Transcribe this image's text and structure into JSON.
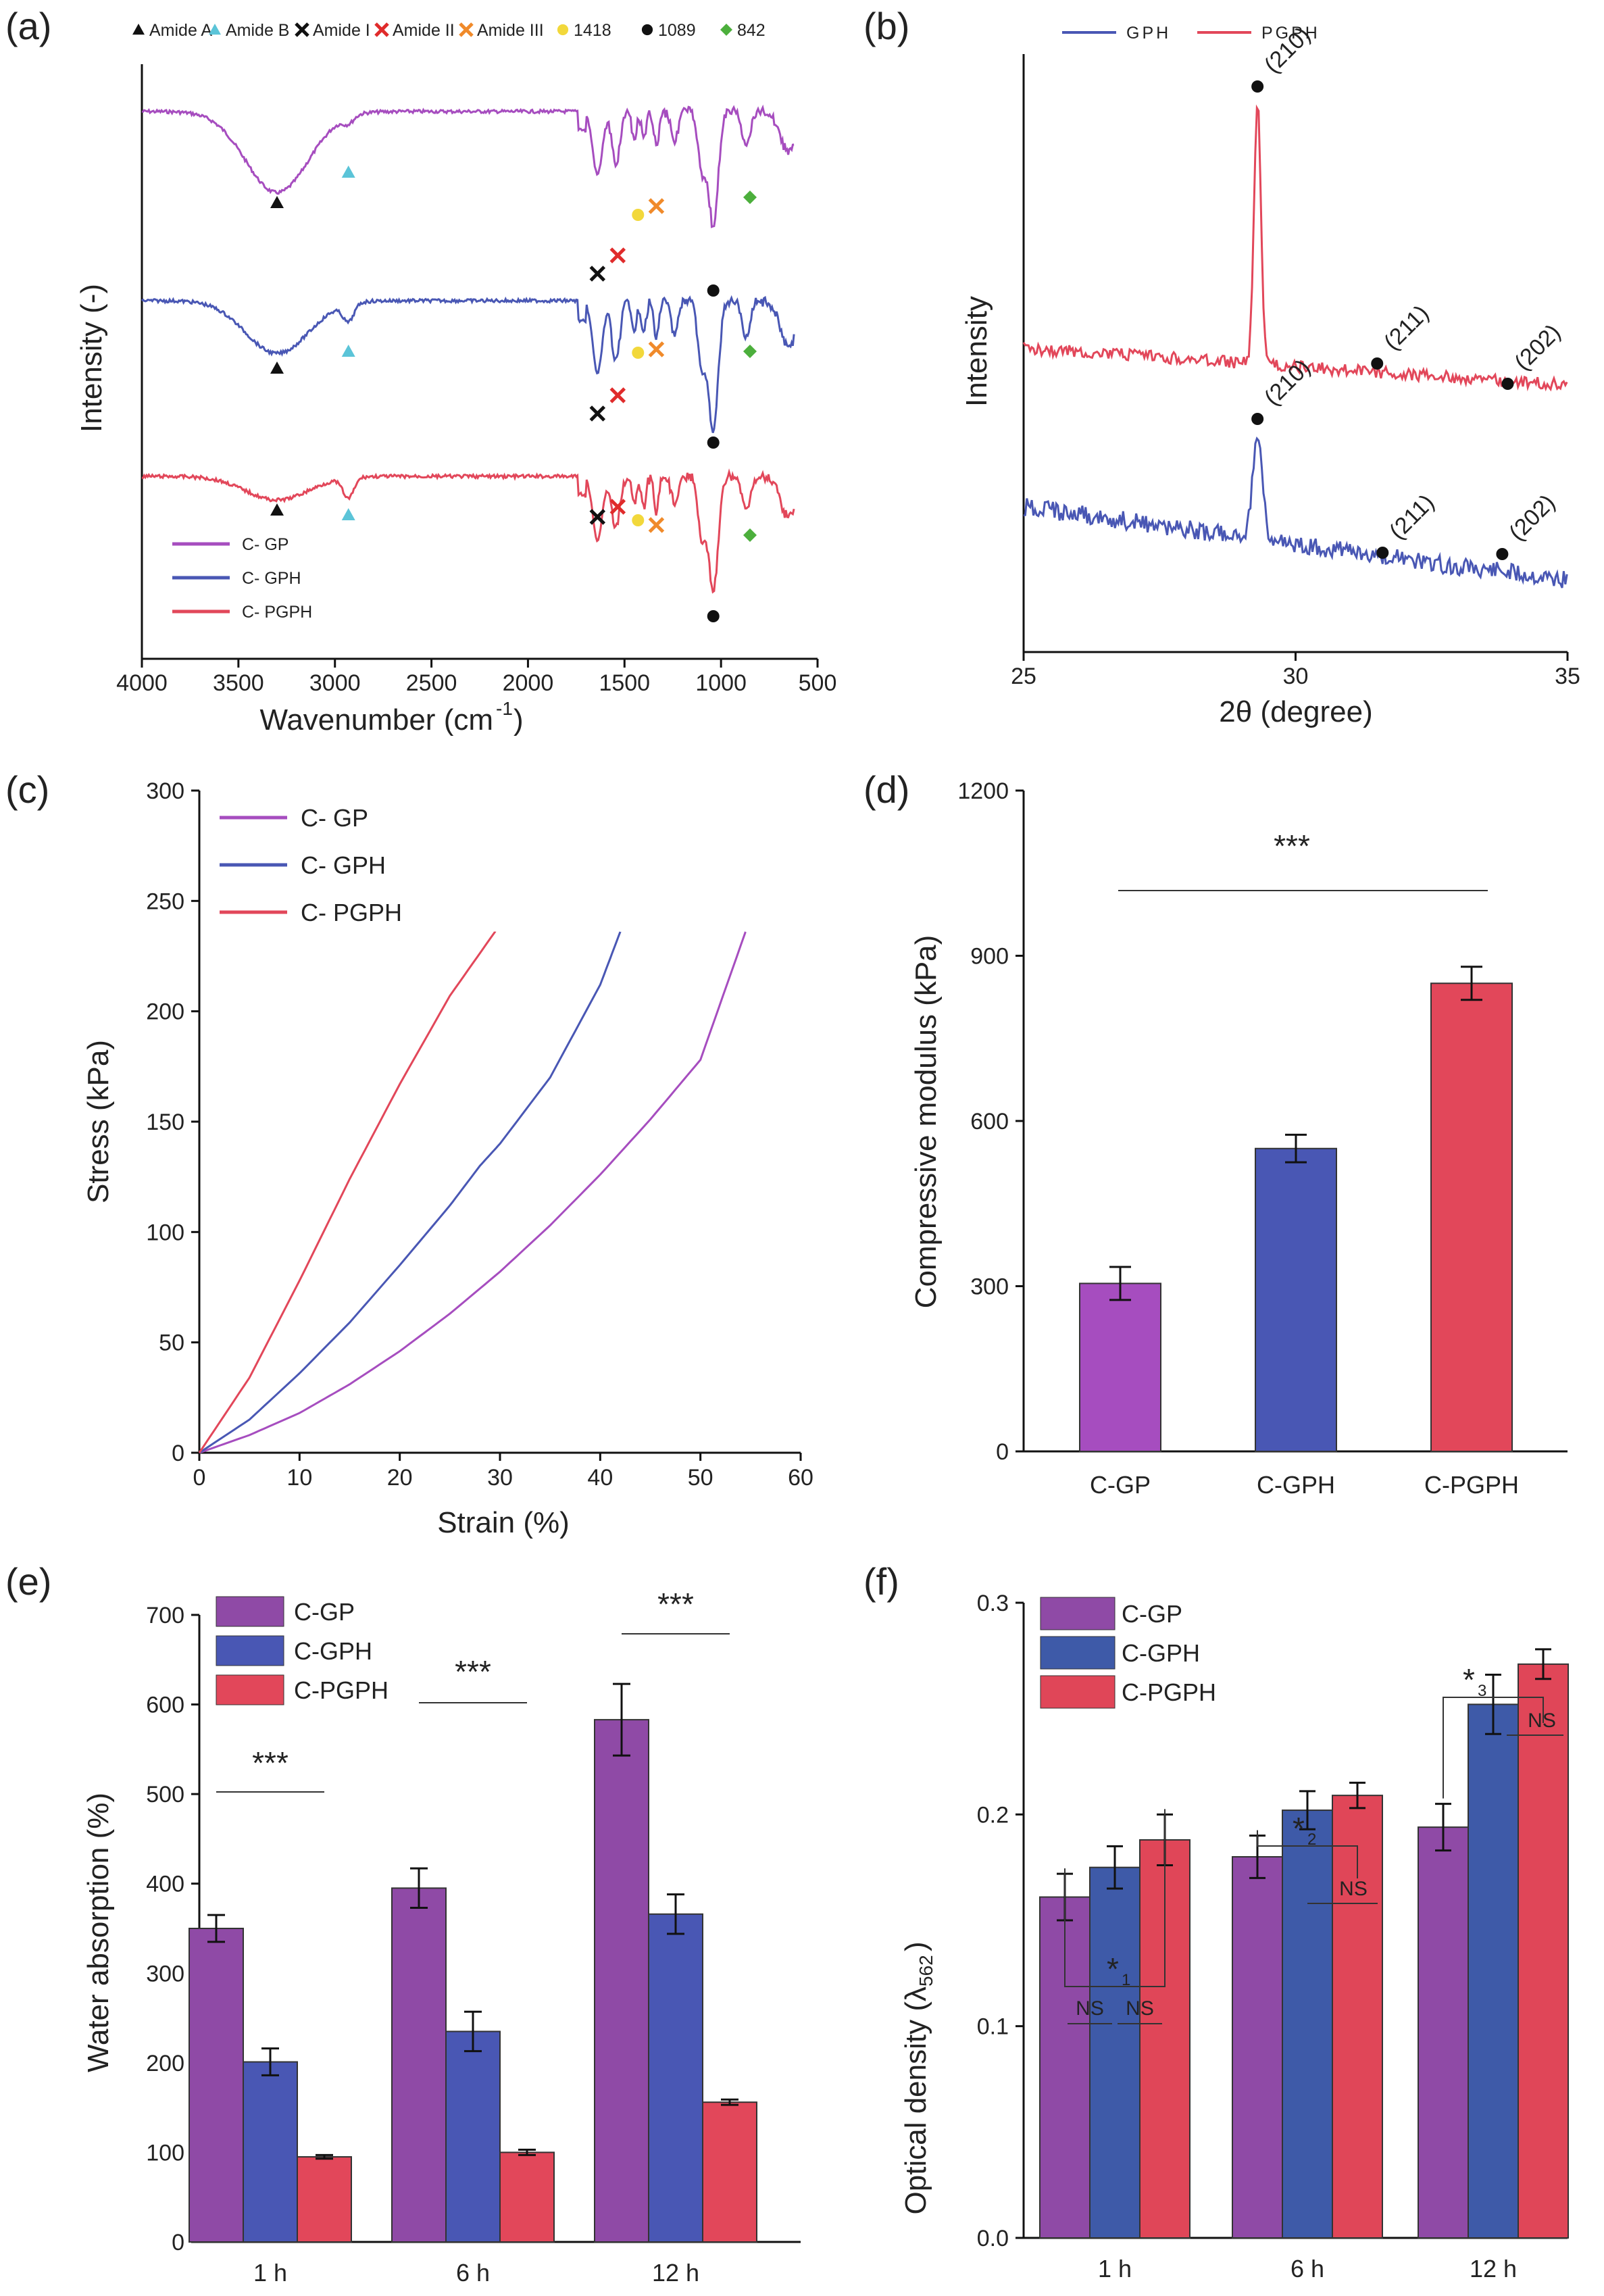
{
  "colors": {
    "gp": "#a64dbf",
    "gph": "#4957b4",
    "pgph": "#e2475a",
    "gp_dark": "#8f4aa6",
    "gph_dark": "#3e5aa8",
    "pgph_dark": "#e04658",
    "amideA": "#111111",
    "amideB": "#5bc4d8",
    "amideI": "#111111",
    "amideII": "#e02b2b",
    "amideIII": "#f08a2a",
    "p1418": "#f2d83b",
    "p1089": "#111111",
    "p842": "#4caf3c"
  },
  "chart_data": [
    {
      "panel": "(a)",
      "type": "line",
      "xlabel": "Wavenumber (cm⁻¹)",
      "ylabel": "Intensity (-)",
      "xlim": [
        4000,
        500
      ],
      "xticks": [
        4000,
        3500,
        3000,
        2500,
        2000,
        1500,
        1000,
        500
      ],
      "marker_legend": [
        {
          "label": "Amide A",
          "symbol": "▲",
          "color": "#111111"
        },
        {
          "label": "Amide B",
          "symbol": "▲",
          "color": "#5bc4d8"
        },
        {
          "label": "Amide I",
          "symbol": "✕",
          "color": "#111111"
        },
        {
          "label": "Amide II",
          "symbol": "✕",
          "color": "#e02b2b"
        },
        {
          "label": "Amide III",
          "symbol": "✕",
          "color": "#f08a2a"
        },
        {
          "label": "1418",
          "symbol": "●",
          "color": "#f2d83b"
        },
        {
          "label": "1089",
          "symbol": "●",
          "color": "#111111"
        },
        {
          "label": "842",
          "symbol": "◆",
          "color": "#4caf3c"
        }
      ],
      "series": [
        {
          "name": "C- GP",
          "color": "#a64dbf"
        },
        {
          "name": "C- GPH",
          "color": "#4957b4"
        },
        {
          "name": "C- PGPH",
          "color": "#e2475a"
        }
      ]
    },
    {
      "panel": "(b)",
      "type": "line",
      "xlabel": "2θ (degree)",
      "ylabel": "Intensity",
      "xlim": [
        25,
        35
      ],
      "xticks": [
        25,
        30,
        35
      ],
      "series": [
        {
          "name": "PGPH",
          "color": "#e2475a",
          "peaks": [
            {
              "x": 29.3,
              "label": "(210)"
            },
            {
              "x": 31.5,
              "label": "(211)"
            },
            {
              "x": 33.9,
              "label": "(202)"
            }
          ]
        },
        {
          "name": "GPH",
          "color": "#4957b4",
          "peaks": [
            {
              "x": 29.3,
              "label": "(210)"
            },
            {
              "x": 31.6,
              "label": "(211)"
            },
            {
              "x": 33.8,
              "label": "(202)"
            }
          ]
        }
      ],
      "legend": [
        "GPH",
        "PGPH"
      ]
    },
    {
      "panel": "(c)",
      "type": "line",
      "xlabel": "Strain (%)",
      "ylabel": "Stress (kPa)",
      "xlim": [
        0,
        60
      ],
      "ylim": [
        0,
        300
      ],
      "xticks": [
        0,
        10,
        20,
        30,
        40,
        50,
        60
      ],
      "yticks": [
        0,
        50,
        100,
        150,
        200,
        250,
        300
      ],
      "series": [
        {
          "name": "C- GP",
          "color": "#a64dbf",
          "x": [
            0,
            5,
            10,
            15,
            20,
            25,
            30,
            35,
            40,
            45,
            50,
            54.5
          ],
          "y": [
            0,
            8,
            18,
            31,
            46,
            63,
            82,
            103,
            126,
            151,
            178,
            236
          ]
        },
        {
          "name": "C- GPH",
          "color": "#4957b4",
          "x": [
            0,
            5,
            10,
            15,
            20,
            25,
            28,
            30,
            35,
            40,
            42
          ],
          "y": [
            0,
            15,
            36,
            59,
            85,
            112,
            130,
            140,
            170,
            212,
            236
          ]
        },
        {
          "name": "C- PGPH",
          "color": "#e2475a",
          "x": [
            0,
            5,
            10,
            15,
            20,
            25,
            29.5
          ],
          "y": [
            0,
            34,
            78,
            124,
            167,
            207,
            236
          ]
        }
      ]
    },
    {
      "panel": "(d)",
      "type": "bar",
      "ylabel": "Compressive modulus (kPa)",
      "ylim": [
        0,
        1200
      ],
      "yticks": [
        0,
        300,
        600,
        900,
        1200
      ],
      "categories": [
        "C-GP",
        "C-GPH",
        "C-PGPH"
      ],
      "values": [
        305,
        550,
        850
      ],
      "errors": [
        30,
        25,
        30
      ],
      "colors": [
        "#a64dbf",
        "#4957b4",
        "#e2475a"
      ],
      "significance": "***"
    },
    {
      "panel": "(e)",
      "type": "bar",
      "ylabel": "Water absorption (%)",
      "ylim": [
        0,
        700
      ],
      "yticks": [
        0,
        100,
        200,
        300,
        400,
        500,
        600,
        700
      ],
      "categories": [
        "1 h",
        "6 h",
        "12 h"
      ],
      "series": [
        {
          "name": "C-GP",
          "color": "#8f4aa6",
          "values": [
            350,
            395,
            583
          ],
          "errors": [
            15,
            22,
            40
          ]
        },
        {
          "name": "C-GPH",
          "color": "#4957b4",
          "values": [
            201,
            235,
            366
          ],
          "errors": [
            15,
            22,
            22
          ]
        },
        {
          "name": "C-PGPH",
          "color": "#e2475a",
          "values": [
            95,
            100,
            156
          ],
          "errors": [
            2,
            3,
            3
          ]
        }
      ],
      "significance": [
        "***",
        "***",
        "***"
      ]
    },
    {
      "panel": "(f)",
      "type": "bar",
      "ylabel": "Optical density (λ562)",
      "ylim": [
        0,
        0.3
      ],
      "yticks": [
        0.0,
        0.1,
        0.2,
        0.3
      ],
      "categories": [
        "1 h",
        "6 h",
        "12 h"
      ],
      "series": [
        {
          "name": "C-GP",
          "color": "#8f4aa6",
          "values": [
            0.161,
            0.18,
            0.194
          ],
          "errors": [
            0.011,
            0.01,
            0.011
          ]
        },
        {
          "name": "C-GPH",
          "color": "#3e5aa8",
          "values": [
            0.175,
            0.202,
            0.252
          ],
          "errors": [
            0.01,
            0.009,
            0.014
          ]
        },
        {
          "name": "C-PGPH",
          "color": "#e04658",
          "values": [
            0.188,
            0.209,
            0.271
          ],
          "errors": [
            0.012,
            0.006,
            0.007
          ]
        }
      ],
      "annotations": [
        {
          "group": "1 h",
          "star": "*1",
          "ns": [
            "NS",
            "NS"
          ]
        },
        {
          "group": "6 h",
          "star": "*2",
          "ns": [
            "NS"
          ]
        },
        {
          "group": "12 h",
          "star": "*3",
          "ns": [
            "NS"
          ]
        }
      ]
    }
  ],
  "labels": {
    "a": {
      "panel": "(a)",
      "xlabel": "Wavenumber (cm",
      "xsup": "-1",
      "xclose": ")",
      "ylabel": "Intensity (-)"
    },
    "b": {
      "panel": "(b)",
      "xlabel": "2θ (degree)",
      "ylabel": "Intensity"
    },
    "c": {
      "panel": "(c)"
    },
    "d": {
      "panel": "(d)"
    },
    "e": {
      "panel": "(e)"
    },
    "f": {
      "panel": "(f)",
      "ylabel_main": "Optical density (λ",
      "ylabel_sub": "562",
      "ylabel_close": ")"
    }
  }
}
